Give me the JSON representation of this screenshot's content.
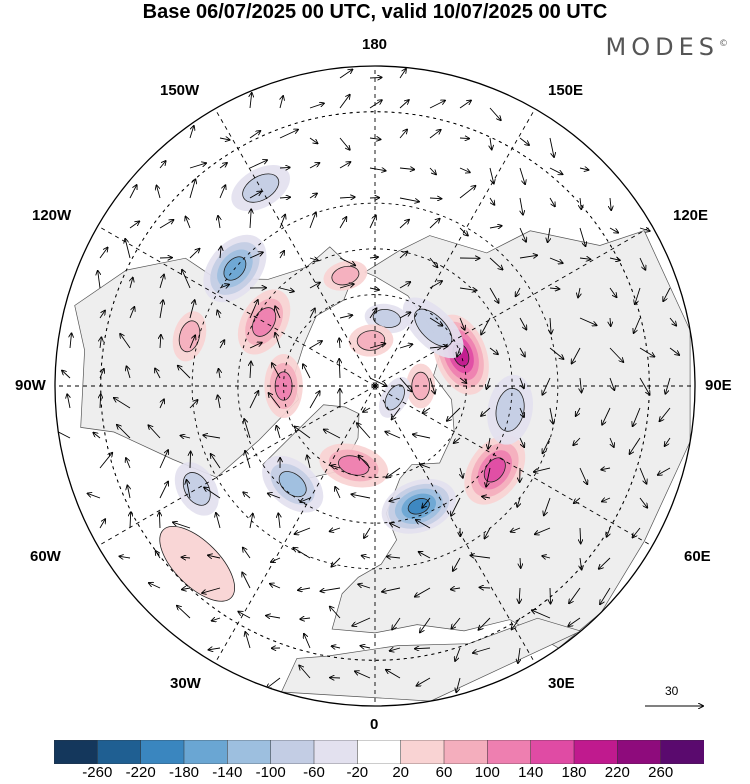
{
  "title": "Base 06/07/2025 00 UTC, valid 10/07/2025 00 UTC",
  "brand": {
    "text": "MODES",
    "mark": "©"
  },
  "longitude_labels": {
    "top": "180",
    "bottom": "0",
    "left": "90W",
    "right": "90E",
    "upper_left_outer": "150W",
    "upper_right_outer": "150E",
    "upper_left_inner": "120W",
    "upper_right_inner": "120E",
    "lower_left_outer": "60W",
    "lower_right_outer": "60E",
    "lower_left_inner": "30W",
    "lower_right_inner": "30E"
  },
  "reference_vector": {
    "label": "30"
  },
  "colorbar": {
    "ticks": [
      "-260",
      "-220",
      "-180",
      "-140",
      "-100",
      "-60",
      "-20",
      "20",
      "60",
      "100",
      "140",
      "180",
      "220",
      "260"
    ],
    "colors": [
      "#14375c",
      "#1f5f92",
      "#3a86bf",
      "#6aa6d3",
      "#9dbfdf",
      "#c3cde4",
      "#e3e1ef",
      "#ffffff",
      "#f9d3d3",
      "#f4aebd",
      "#ee7fb0",
      "#e04ba4",
      "#c01a8e",
      "#8e0b7c",
      "#5a0a6e"
    ]
  },
  "anomalies": [
    {
      "kind": "positive",
      "lon": -120,
      "lat": 62,
      "rx": 22,
      "ry": 14,
      "level": 3
    },
    {
      "kind": "positive",
      "lon": -165,
      "lat": 65,
      "rx": 14,
      "ry": 9,
      "level": 2
    },
    {
      "kind": "positive",
      "lon": -105,
      "lat": 48,
      "rx": 16,
      "ry": 10,
      "level": 2
    },
    {
      "kind": "negative",
      "lon": -130,
      "lat": 50,
      "rx": 24,
      "ry": 16,
      "level": 4
    },
    {
      "kind": "negative",
      "lon": -150,
      "lat": 40,
      "rx": 20,
      "ry": 12,
      "level": 2
    },
    {
      "kind": "positive",
      "lon": -90,
      "lat": 70,
      "rx": 20,
      "ry": 12,
      "level": 3
    },
    {
      "kind": "negative",
      "lon": -40,
      "lat": 62,
      "rx": 22,
      "ry": 14,
      "level": 3
    },
    {
      "kind": "positive",
      "lon": -15,
      "lat": 72,
      "rx": 22,
      "ry": 13,
      "level": 3
    },
    {
      "kind": "negative",
      "lon": 20,
      "lat": 62,
      "rx": 24,
      "ry": 16,
      "level": 5
    },
    {
      "kind": "positive",
      "lon": 55,
      "lat": 58,
      "rx": 24,
      "ry": 16,
      "level": 4
    },
    {
      "kind": "negative",
      "lon": 80,
      "lat": 60,
      "rx": 22,
      "ry": 14,
      "level": 2
    },
    {
      "kind": "positive",
      "lon": 110,
      "lat": 70,
      "rx": 26,
      "ry": 16,
      "level": 5
    },
    {
      "kind": "negative",
      "lon": 135,
      "lat": 72,
      "rx": 24,
      "ry": 12,
      "level": 2
    },
    {
      "kind": "negative",
      "lon": 170,
      "lat": 75,
      "rx": 14,
      "ry": 9,
      "level": 2
    },
    {
      "kind": "positive",
      "lon": -175,
      "lat": 80,
      "rx": 14,
      "ry": 10,
      "level": 2
    },
    {
      "kind": "positive",
      "lon": 90,
      "lat": 80,
      "rx": 14,
      "ry": 9,
      "level": 2
    },
    {
      "kind": "negative",
      "lon": -60,
      "lat": 45,
      "rx": 18,
      "ry": 12,
      "level": 2
    },
    {
      "kind": "positive",
      "lon": -45,
      "lat": 35,
      "rx": 30,
      "ry": 14,
      "level": 1
    },
    {
      "kind": "negative",
      "lon": 60,
      "lat": 85,
      "rx": 14,
      "ry": 8,
      "level": 2
    }
  ]
}
